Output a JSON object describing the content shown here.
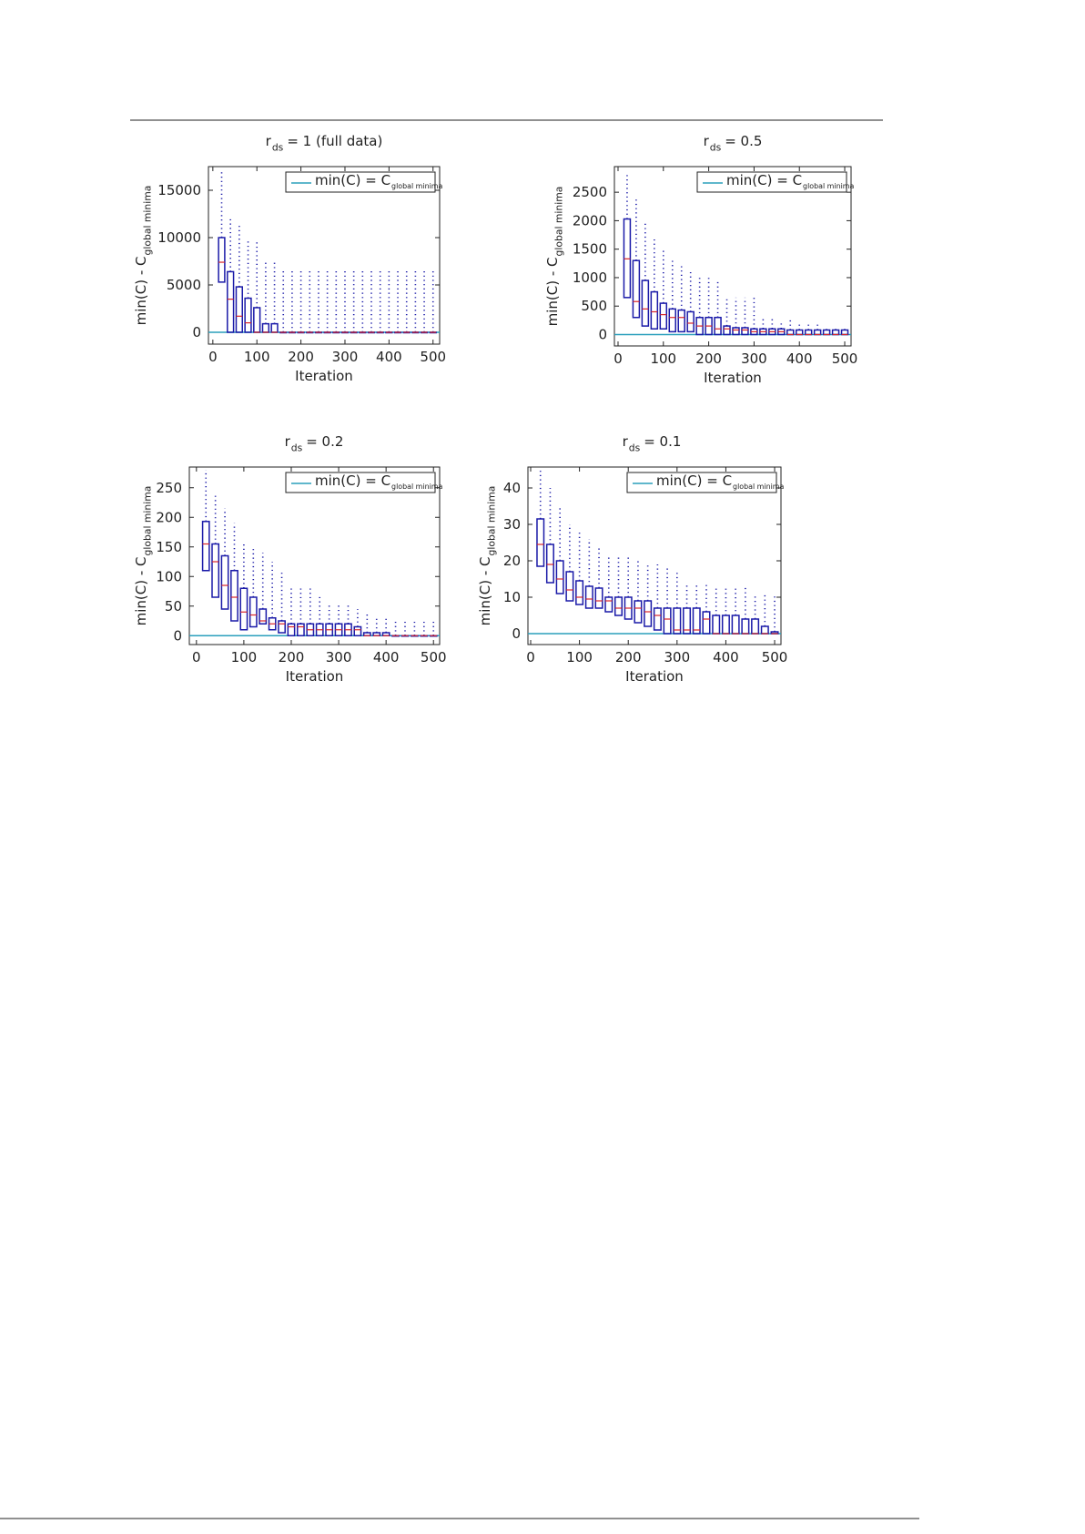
{
  "chart_data": [
    {
      "type": "box",
      "title": [
        {
          "text": "r"
        },
        {
          "text": "ds",
          "sub": true
        },
        {
          "text": "= 1 (full data)"
        }
      ],
      "x_label": "Iteration",
      "y_label": [
        {
          "text": "min(C) - C"
        },
        {
          "text": "global minima",
          "sub": true
        }
      ],
      "legend": {
        "label": [
          {
            "text": "min(C) = C"
          },
          {
            "text": "global minima",
            "sub": true
          }
        ],
        "value": 0,
        "color": "#2a9fbc",
        "position": "upper right"
      },
      "x": [
        20,
        40,
        60,
        80,
        100,
        120,
        140,
        160,
        180,
        200,
        220,
        240,
        260,
        280,
        300,
        320,
        340,
        360,
        380,
        400,
        420,
        440,
        460,
        480,
        500
      ],
      "q1": [
        5300,
        0,
        0,
        0,
        0,
        0,
        0,
        0,
        0,
        0,
        0,
        0,
        0,
        0,
        0,
        0,
        0,
        0,
        0,
        0,
        0,
        0,
        0,
        0,
        0
      ],
      "median": [
        7400,
        3500,
        1700,
        1000,
        0,
        0,
        0,
        0,
        0,
        0,
        0,
        0,
        0,
        0,
        0,
        0,
        0,
        0,
        0,
        0,
        0,
        0,
        0,
        0,
        0
      ],
      "q3": [
        10000,
        6400,
        4800,
        3600,
        2600,
        900,
        900,
        0,
        0,
        0,
        0,
        0,
        0,
        0,
        0,
        0,
        0,
        0,
        0,
        0,
        0,
        0,
        0,
        0,
        0
      ],
      "max": [
        17000,
        12000,
        11500,
        9800,
        9800,
        7500,
        7400,
        6500,
        6500,
        6500,
        6500,
        6500,
        6500,
        6500,
        6500,
        6500,
        6500,
        6500,
        6500,
        6500,
        6500,
        6500,
        6500,
        6500,
        6500
      ],
      "xlim": [
        -10,
        515
      ],
      "ylim": [
        -1250,
        17500
      ],
      "xticks": [
        0,
        100,
        200,
        300,
        400,
        500
      ],
      "yticks": [
        0,
        5000,
        10000,
        15000
      ],
      "box_color": "#1a1aa8",
      "median_color": "#d8262a"
    },
    {
      "type": "box",
      "title": [
        {
          "text": "r"
        },
        {
          "text": "ds",
          "sub": true
        },
        {
          "text": "= 0.5"
        }
      ],
      "x_label": "Iteration",
      "y_label": [
        {
          "text": "min(C) - C"
        },
        {
          "text": "global minima",
          "sub": true
        }
      ],
      "legend": {
        "label": [
          {
            "text": "min(C) = C"
          },
          {
            "text": "global minima",
            "sub": true
          }
        ],
        "value": 0,
        "color": "#2a9fbc",
        "position": "upper right"
      },
      "x": [
        20,
        40,
        60,
        80,
        100,
        120,
        140,
        160,
        180,
        200,
        220,
        240,
        260,
        280,
        300,
        320,
        340,
        360,
        380,
        400,
        420,
        440,
        460,
        480,
        500
      ],
      "q1": [
        650,
        300,
        150,
        100,
        100,
        50,
        50,
        50,
        0,
        0,
        0,
        0,
        0,
        0,
        0,
        0,
        0,
        0,
        0,
        0,
        0,
        0,
        0,
        0,
        0
      ],
      "median": [
        1330,
        580,
        450,
        400,
        350,
        300,
        300,
        200,
        150,
        150,
        100,
        100,
        80,
        80,
        50,
        50,
        50,
        50,
        0,
        0,
        0,
        0,
        0,
        0,
        0
      ],
      "q3": [
        2030,
        1300,
        950,
        750,
        550,
        450,
        430,
        400,
        300,
        300,
        300,
        150,
        120,
        120,
        100,
        100,
        100,
        100,
        80,
        80,
        80,
        80,
        80,
        80,
        80
      ],
      "max": [
        2800,
        2400,
        2000,
        1700,
        1500,
        1300,
        1200,
        1100,
        1000,
        1000,
        950,
        650,
        650,
        650,
        650,
        300,
        300,
        250,
        250,
        200,
        200,
        200,
        150,
        150,
        150
      ],
      "xlim": [
        -8,
        514
      ],
      "ylim": [
        -200,
        2950
      ],
      "xticks": [
        0,
        100,
        200,
        300,
        400,
        500
      ],
      "yticks": [
        0,
        500,
        1000,
        1500,
        2000,
        2500
      ],
      "box_color": "#1a1aa8",
      "median_color": "#d8262a"
    },
    {
      "type": "box",
      "title": [
        {
          "text": "r"
        },
        {
          "text": "ds",
          "sub": true
        },
        {
          "text": "= 0.2"
        }
      ],
      "x_label": "Iteration",
      "y_label": [
        {
          "text": "min(C) - C"
        },
        {
          "text": "global minima",
          "sub": true
        }
      ],
      "legend": {
        "label": [
          {
            "text": "min(C) = C"
          },
          {
            "text": "global minima",
            "sub": true
          }
        ],
        "value": 0,
        "color": "#2a9fbc",
        "position": "upper right"
      },
      "x": [
        20,
        40,
        60,
        80,
        100,
        120,
        140,
        160,
        180,
        200,
        220,
        240,
        260,
        280,
        300,
        320,
        340,
        360,
        380,
        400,
        420,
        440,
        460,
        480,
        500
      ],
      "q1": [
        110,
        65,
        45,
        25,
        10,
        15,
        20,
        10,
        5,
        0,
        0,
        0,
        0,
        0,
        0,
        0,
        0,
        0,
        0,
        0,
        0,
        0,
        0,
        0,
        0
      ],
      "median": [
        155,
        125,
        85,
        65,
        40,
        35,
        25,
        20,
        20,
        15,
        15,
        10,
        10,
        10,
        10,
        10,
        10,
        0,
        0,
        0,
        0,
        0,
        0,
        0,
        0
      ],
      "q3": [
        193,
        155,
        135,
        110,
        80,
        65,
        45,
        30,
        25,
        20,
        20,
        20,
        20,
        20,
        20,
        20,
        15,
        5,
        5,
        5,
        0,
        0,
        0,
        0,
        0
      ],
      "max": [
        280,
        240,
        215,
        190,
        155,
        150,
        140,
        125,
        110,
        80,
        80,
        80,
        70,
        55,
        55,
        55,
        45,
        40,
        30,
        30,
        25,
        25,
        25,
        25,
        25
      ],
      "xlim": [
        -15,
        513
      ],
      "ylim": [
        -15,
        285
      ],
      "xticks": [
        0,
        100,
        200,
        300,
        400,
        500
      ],
      "yticks": [
        0,
        50,
        100,
        150,
        200,
        250
      ],
      "box_color": "#1a1aa8",
      "median_color": "#d8262a"
    },
    {
      "type": "box",
      "title": [
        {
          "text": "r"
        },
        {
          "text": "ds",
          "sub": true
        },
        {
          "text": "= 0.1"
        }
      ],
      "x_label": "Iteration",
      "y_label": [
        {
          "text": "min(C) - C"
        },
        {
          "text": "global minima",
          "sub": true
        }
      ],
      "legend": {
        "label": [
          {
            "text": "min(C) = C"
          },
          {
            "text": "global minima",
            "sub": true
          }
        ],
        "value": 0,
        "color": "#2a9fbc",
        "position": "upper right"
      },
      "x": [
        20,
        40,
        60,
        80,
        100,
        120,
        140,
        160,
        180,
        200,
        220,
        240,
        260,
        280,
        300,
        320,
        340,
        360,
        380,
        400,
        420,
        440,
        460,
        480,
        500
      ],
      "q1": [
        18.5,
        14,
        11,
        9,
        8,
        7,
        7,
        6,
        5,
        4,
        3,
        2,
        1,
        0,
        0,
        0,
        0,
        0,
        0,
        0,
        0,
        0,
        0,
        0,
        0
      ],
      "median": [
        24.5,
        19,
        15,
        12,
        10,
        9.5,
        9,
        9,
        7,
        7,
        7,
        6,
        5,
        4,
        1,
        1,
        1,
        4,
        0,
        0,
        0,
        0,
        0,
        0,
        0
      ],
      "q3": [
        31.5,
        24.5,
        20,
        17,
        14.5,
        13,
        12.5,
        10,
        10,
        10,
        9,
        9,
        7,
        7,
        7,
        7,
        7,
        6,
        5,
        5,
        5,
        4,
        4,
        2,
        0.5
      ],
      "max": [
        45,
        40,
        35,
        30,
        28,
        26,
        24,
        21,
        21,
        21,
        20,
        19,
        19,
        18,
        17,
        14,
        14,
        14,
        13,
        13,
        13,
        13,
        11,
        11,
        11
      ],
      "xlim": [
        -5.6,
        513
      ],
      "ylim": [
        -3,
        45.75
      ],
      "xticks": [
        0,
        100,
        200,
        300,
        400,
        500
      ],
      "yticks": [
        0,
        10,
        20,
        30,
        40
      ],
      "box_color": "#1a1aa8",
      "median_color": "#d8262a"
    }
  ]
}
